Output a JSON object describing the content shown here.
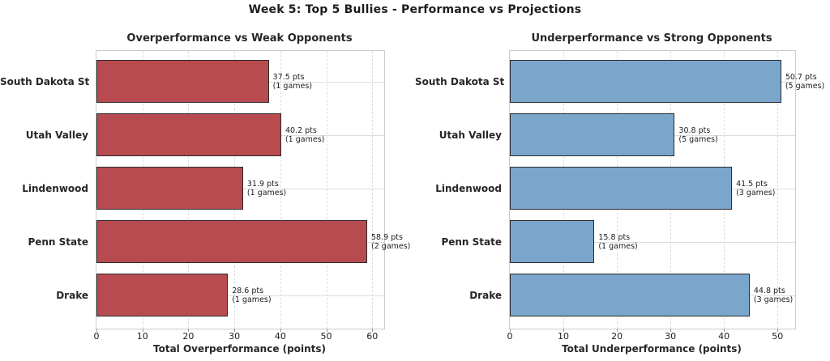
{
  "figure_title": "Week 5: Top 5 Bullies - Performance vs Projections",
  "colors": {
    "overperformance_bar": "#b84b4f",
    "underperformance_bar": "#7aa6cc",
    "bar_edge": "#2b2b2b",
    "grid": "#dcdcdc",
    "spine": "#cccccc",
    "text": "#1c1c1c"
  },
  "chart_data": [
    {
      "type": "bar",
      "orientation": "horizontal",
      "title": "Overperformance vs Weak Opponents",
      "xlabel": "Total Overperformance (points)",
      "categories": [
        "South Dakota St",
        "Utah Valley",
        "Lindenwood",
        "Penn State",
        "Drake"
      ],
      "values": [
        37.5,
        40.2,
        31.9,
        58.9,
        28.6
      ],
      "games": [
        1,
        1,
        1,
        2,
        1
      ],
      "annotations": [
        [
          "37.5 pts",
          "(1 games)"
        ],
        [
          "40.2 pts",
          "(1 games)"
        ],
        [
          "31.9 pts",
          "(1 games)"
        ],
        [
          "58.9 pts",
          "(2 games)"
        ],
        [
          "28.6 pts",
          "(1 games)"
        ]
      ],
      "xticks": [
        0,
        10,
        20,
        30,
        40,
        50,
        60
      ],
      "xlim": [
        0,
        62.6
      ],
      "bar_color": "#b84b4f",
      "grid": true,
      "legend": null
    },
    {
      "type": "bar",
      "orientation": "horizontal",
      "title": "Underperformance vs Strong Opponents",
      "xlabel": "Total Underperformance (points)",
      "categories": [
        "South Dakota St",
        "Utah Valley",
        "Lindenwood",
        "Penn State",
        "Drake"
      ],
      "values": [
        50.7,
        30.8,
        41.5,
        15.8,
        44.8
      ],
      "games": [
        5,
        5,
        3,
        1,
        3
      ],
      "annotations": [
        [
          "50.7 pts",
          "(5 games)"
        ],
        [
          "30.8 pts",
          "(5 games)"
        ],
        [
          "41.5 pts",
          "(3 games)"
        ],
        [
          "15.8 pts",
          "(1 games)"
        ],
        [
          "44.8 pts",
          "(3 games)"
        ]
      ],
      "xticks": [
        0,
        10,
        20,
        30,
        40,
        50
      ],
      "xlim": [
        0,
        53.3
      ],
      "bar_color": "#7aa6cc",
      "grid": true,
      "legend": null
    }
  ]
}
